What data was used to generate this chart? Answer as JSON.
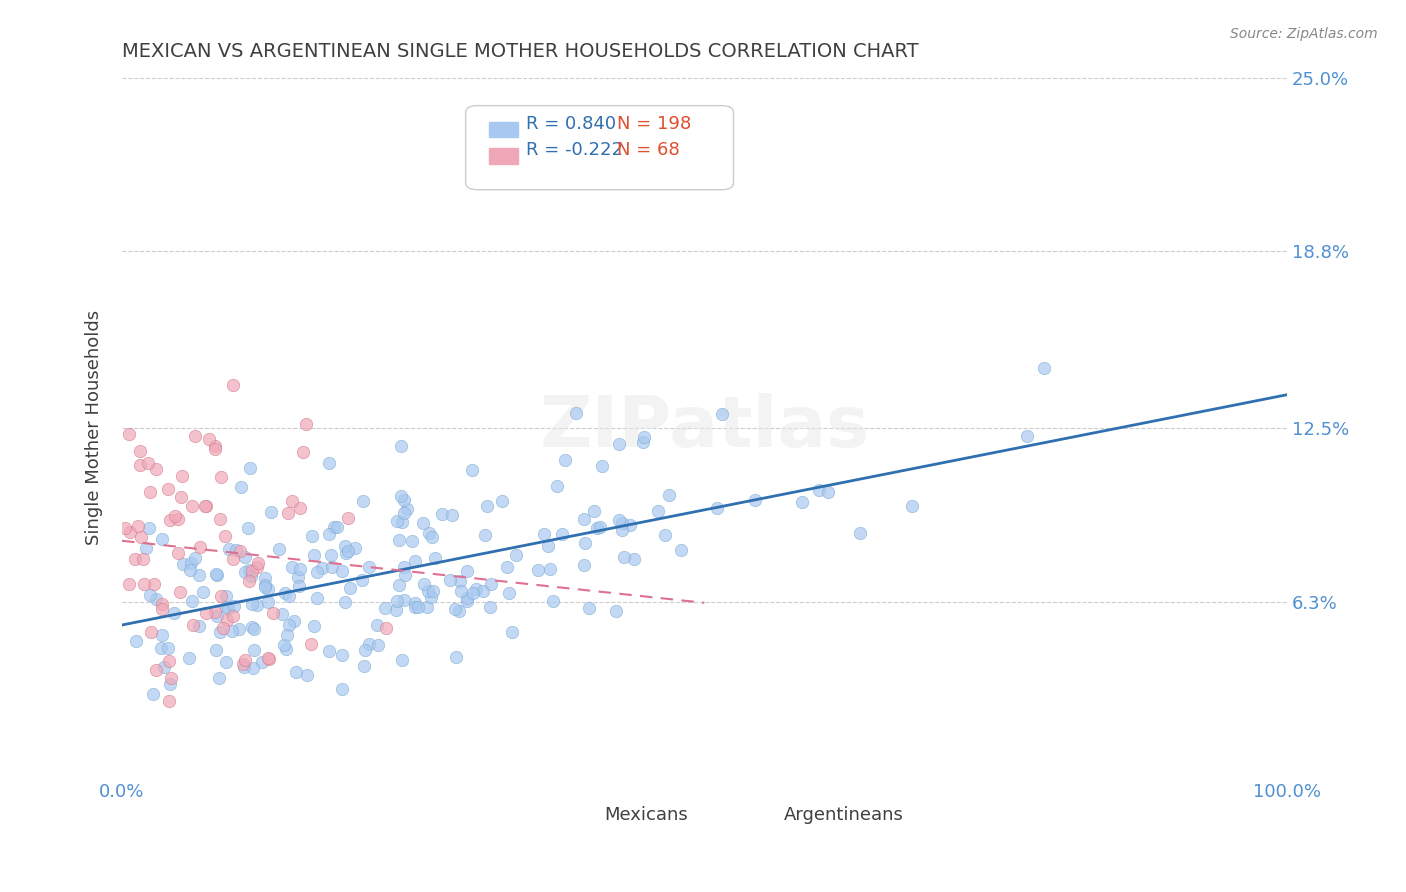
{
  "title": "MEXICAN VS ARGENTINEAN SINGLE MOTHER HOUSEHOLDS CORRELATION CHART",
  "source": "Source: ZipAtlas.com",
  "ylabel": "Single Mother Households",
  "xlabel": "",
  "xlim": [
    0,
    1.0
  ],
  "ylim": [
    0,
    0.25
  ],
  "yticks": [
    0.0,
    0.063,
    0.125,
    0.188,
    0.25
  ],
  "ytick_labels": [
    "",
    "6.3%",
    "12.5%",
    "18.8%",
    "25.0%"
  ],
  "xtick_labels": [
    "0.0%",
    "100.0%"
  ],
  "legend_entries": [
    {
      "label": "Mexicans",
      "R": "0.840",
      "N": "198",
      "color": "#a8c8f0"
    },
    {
      "label": "Argentineans",
      "R": "-0.222",
      "N": "68",
      "color": "#f0a8b8"
    }
  ],
  "watermark": "ZIPatlas",
  "scatter_mexican": {
    "color": "#a8c8f0",
    "edge_color": "#7aaad0",
    "alpha": 0.7,
    "size": 80
  },
  "scatter_argentinean": {
    "color": "#f0a8b8",
    "edge_color": "#d07888",
    "alpha": 0.7,
    "size": 80
  },
  "line_mexican": {
    "color": "#3070b0",
    "linewidth": 2.0
  },
  "line_argentinean": {
    "color": "#e07090",
    "linewidth": 1.5,
    "dashes": [
      6,
      4
    ]
  },
  "background_color": "#ffffff",
  "grid_color": "#cccccc",
  "title_color": "#404040",
  "axis_label_color": "#404040",
  "tick_label_color": "#5090d0",
  "legend_R_color": "#3070b0",
  "legend_N_color": "#e05030"
}
